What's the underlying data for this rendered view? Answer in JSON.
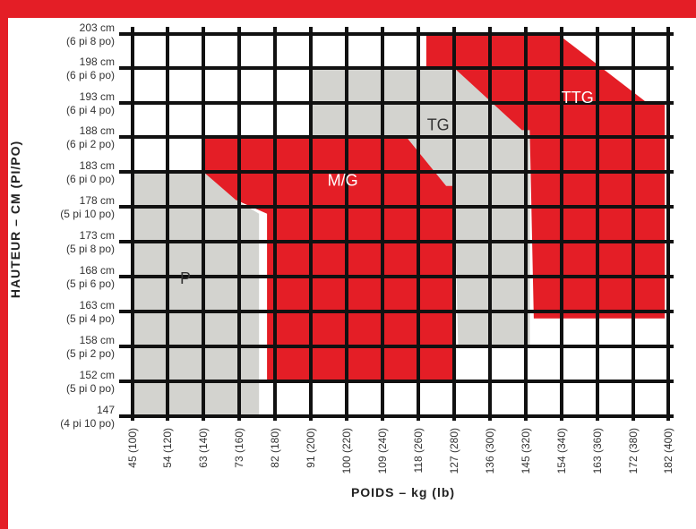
{
  "chart_data": {
    "type": "area",
    "title": "",
    "xlabel": "POIDS – kg (lb)",
    "ylabel": "HAUTEUR – CM (PI/PO)",
    "x_ticks": [
      "45 (100)",
      "54 (120)",
      "63 (140)",
      "73 (160)",
      "82 (180)",
      "91 (200)",
      "100 (220)",
      "109 (240)",
      "118 (260)",
      "127 (280)",
      "136 (300)",
      "145 (320)",
      "154 (340)",
      "163 (360)",
      "172 (380)",
      "182 (400)"
    ],
    "x_values_kg": [
      45,
      54,
      63,
      73,
      82,
      91,
      100,
      109,
      118,
      127,
      136,
      145,
      154,
      163,
      172,
      182
    ],
    "y_ticks": [
      {
        "cm": 203,
        "line1": "203 cm",
        "line2": "(6 pi 8 po)"
      },
      {
        "cm": 198,
        "line1": "198 cm",
        "line2": "(6 pi 6 po)"
      },
      {
        "cm": 193,
        "line1": "193 cm",
        "line2": "(6 pi 4 po)"
      },
      {
        "cm": 188,
        "line1": "188 cm",
        "line2": "(6 pi 2 po)"
      },
      {
        "cm": 183,
        "line1": "183 cm",
        "line2": "(6 pi 0 po)"
      },
      {
        "cm": 178,
        "line1": "178 cm",
        "line2": "(5 pi 10 po)"
      },
      {
        "cm": 173,
        "line1": "173 cm",
        "line2": "(5 pi 8 po)"
      },
      {
        "cm": 168,
        "line1": "168 cm",
        "line2": "(5 pi 6 po)"
      },
      {
        "cm": 163,
        "line1": "163 cm",
        "line2": "(5 pi 4 po)"
      },
      {
        "cm": 158,
        "line1": "158 cm",
        "line2": "(5 pi 2 po)"
      },
      {
        "cm": 152,
        "line1": "152 cm",
        "line2": "(5 pi 0 po)"
      },
      {
        "cm": 147,
        "line1": "147",
        "line2": "(4 pi 10 po)"
      }
    ],
    "zones": [
      {
        "name": "P",
        "color": "#d3d3cf",
        "label_at": {
          "kg": 58.5,
          "cm": 167
        },
        "polygon": [
          [
            45,
            147
          ],
          [
            45,
            183
          ],
          [
            63,
            183
          ],
          [
            72,
            179
          ],
          [
            78,
            177
          ],
          [
            78,
            147
          ]
        ]
      },
      {
        "name": "M/G",
        "color": "#e41e26",
        "label_at": {
          "kg": 99,
          "cm": 181
        },
        "polygon": [
          [
            63,
            183
          ],
          [
            63,
            188
          ],
          [
            115,
            188
          ],
          [
            125,
            181
          ],
          [
            127,
            181
          ],
          [
            127,
            152
          ],
          [
            80,
            152
          ],
          [
            80,
            177
          ],
          [
            72,
            179
          ]
        ]
      },
      {
        "name": "TG",
        "color": "#d3d3cf",
        "label_at": {
          "kg": 123,
          "cm": 189
        },
        "polygon": [
          [
            91,
            198
          ],
          [
            127,
            198
          ],
          [
            144,
            189
          ],
          [
            146,
            189
          ],
          [
            146,
            158
          ],
          [
            128,
            158
          ],
          [
            127,
            181
          ],
          [
            125,
            181
          ],
          [
            115,
            188
          ],
          [
            91,
            188
          ]
        ]
      },
      {
        "name": "TTG",
        "color": "#e41e26",
        "label_at": {
          "kg": 158,
          "cm": 193
        },
        "polygon": [
          [
            120,
            203
          ],
          [
            153,
            203
          ],
          [
            176,
            193
          ],
          [
            181,
            193
          ],
          [
            181,
            162
          ],
          [
            147,
            162
          ],
          [
            146,
            189
          ],
          [
            144,
            189
          ],
          [
            127,
            198
          ],
          [
            120,
            198
          ]
        ]
      }
    ],
    "grid": true,
    "legend": "none"
  }
}
